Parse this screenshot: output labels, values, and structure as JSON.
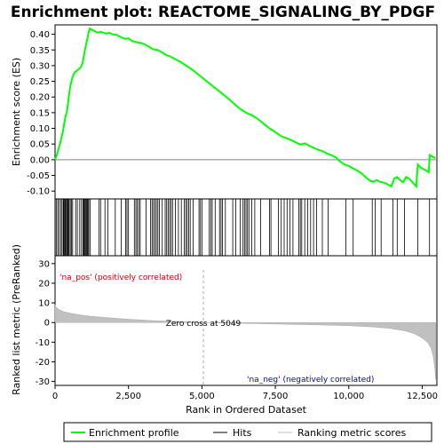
{
  "chart_data": {
    "type": "line",
    "title": "Enrichment plot: REACTOME_SIGNALING_BY_PDGF",
    "x_label": "Rank in Ordered Dataset",
    "x_range": [
      0,
      13000
    ],
    "x_ticks": [
      0,
      2500,
      5000,
      7500,
      10000,
      12500
    ],
    "x_tick_labels": [
      "0",
      "2,500",
      "5,000",
      "7,500",
      "10,000",
      "12,500"
    ],
    "es_panel": {
      "ylabel": "Enrichment score (ES)",
      "ylim": [
        -0.125,
        0.43
      ],
      "y_ticks": [
        -0.1,
        -0.05,
        0.0,
        0.05,
        0.1,
        0.15,
        0.2,
        0.25,
        0.3,
        0.35,
        0.4
      ],
      "y_tick_labels": [
        "-0.10",
        "-0.05",
        "0.00",
        "0.05",
        "0.10",
        "0.15",
        "0.20",
        "0.25",
        "0.30",
        "0.35",
        "0.40"
      ],
      "series_name": "Enrichment profile",
      "color": "#00ff00",
      "points": [
        [
          0,
          0.0
        ],
        [
          60,
          0.015
        ],
        [
          120,
          0.035
        ],
        [
          180,
          0.055
        ],
        [
          230,
          0.075
        ],
        [
          270,
          0.09
        ],
        [
          310,
          0.115
        ],
        [
          360,
          0.14
        ],
        [
          400,
          0.15
        ],
        [
          440,
          0.18
        ],
        [
          480,
          0.21
        ],
        [
          520,
          0.235
        ],
        [
          570,
          0.255
        ],
        [
          620,
          0.27
        ],
        [
          680,
          0.28
        ],
        [
          760,
          0.285
        ],
        [
          820,
          0.29
        ],
        [
          880,
          0.295
        ],
        [
          940,
          0.31
        ],
        [
          980,
          0.33
        ],
        [
          1020,
          0.35
        ],
        [
          1060,
          0.37
        ],
        [
          1100,
          0.385
        ],
        [
          1140,
          0.405
        ],
        [
          1180,
          0.418
        ],
        [
          1250,
          0.415
        ],
        [
          1350,
          0.41
        ],
        [
          1450,
          0.405
        ],
        [
          1550,
          0.408
        ],
        [
          1650,
          0.405
        ],
        [
          1750,
          0.402
        ],
        [
          1850,
          0.405
        ],
        [
          1950,
          0.4
        ],
        [
          2100,
          0.398
        ],
        [
          2250,
          0.39
        ],
        [
          2400,
          0.385
        ],
        [
          2500,
          0.387
        ],
        [
          2600,
          0.38
        ],
        [
          2750,
          0.375
        ],
        [
          2900,
          0.373
        ],
        [
          3050,
          0.368
        ],
        [
          3200,
          0.36
        ],
        [
          3350,
          0.352
        ],
        [
          3500,
          0.35
        ],
        [
          3650,
          0.342
        ],
        [
          3800,
          0.333
        ],
        [
          3900,
          0.33
        ],
        [
          4000,
          0.325
        ],
        [
          4150,
          0.318
        ],
        [
          4300,
          0.31
        ],
        [
          4500,
          0.298
        ],
        [
          4700,
          0.285
        ],
        [
          4900,
          0.27
        ],
        [
          5100,
          0.255
        ],
        [
          5300,
          0.24
        ],
        [
          5500,
          0.225
        ],
        [
          5700,
          0.21
        ],
        [
          5900,
          0.195
        ],
        [
          6100,
          0.178
        ],
        [
          6300,
          0.162
        ],
        [
          6500,
          0.15
        ],
        [
          6700,
          0.142
        ],
        [
          6900,
          0.13
        ],
        [
          7100,
          0.115
        ],
        [
          7300,
          0.1
        ],
        [
          7500,
          0.088
        ],
        [
          7700,
          0.075
        ],
        [
          7900,
          0.068
        ],
        [
          8100,
          0.06
        ],
        [
          8200,
          0.055
        ],
        [
          8350,
          0.048
        ],
        [
          8500,
          0.052
        ],
        [
          8650,
          0.045
        ],
        [
          8800,
          0.038
        ],
        [
          8950,
          0.032
        ],
        [
          9100,
          0.028
        ],
        [
          9250,
          0.02
        ],
        [
          9400,
          0.015
        ],
        [
          9550,
          0.008
        ],
        [
          9700,
          -0.005
        ],
        [
          9850,
          -0.015
        ],
        [
          10000,
          -0.02
        ],
        [
          10150,
          -0.028
        ],
        [
          10300,
          -0.035
        ],
        [
          10450,
          -0.045
        ],
        [
          10600,
          -0.058
        ],
        [
          10750,
          -0.068
        ],
        [
          10850,
          -0.07
        ],
        [
          10950,
          -0.065
        ],
        [
          11050,
          -0.07
        ],
        [
          11150,
          -0.072
        ],
        [
          11250,
          -0.075
        ],
        [
          11350,
          -0.08
        ],
        [
          11450,
          -0.085
        ],
        [
          11550,
          -0.06
        ],
        [
          11650,
          -0.055
        ],
        [
          11750,
          -0.065
        ],
        [
          11850,
          -0.072
        ],
        [
          11950,
          -0.055
        ],
        [
          12050,
          -0.06
        ],
        [
          12150,
          -0.07
        ],
        [
          12250,
          -0.08
        ],
        [
          12300,
          -0.085
        ],
        [
          12350,
          -0.015
        ],
        [
          12450,
          -0.025
        ],
        [
          12550,
          -0.03
        ],
        [
          12650,
          -0.035
        ],
        [
          12720,
          -0.04
        ],
        [
          12760,
          0.015
        ],
        [
          12850,
          0.01
        ],
        [
          12950,
          0.005
        ]
      ]
    },
    "hits_panel": {
      "series_name": "Hits",
      "positions": [
        40,
        90,
        140,
        200,
        240,
        280,
        300,
        330,
        350,
        370,
        400,
        430,
        450,
        480,
        520,
        560,
        600,
        700,
        760,
        840,
        900,
        950,
        980,
        1000,
        1030,
        1060,
        1090,
        1120,
        1150,
        1200,
        1500,
        1550,
        1700,
        1800,
        2050,
        2250,
        2400,
        2450,
        2500,
        2700,
        2750,
        2800,
        2850,
        2900,
        3100,
        3250,
        3300,
        3350,
        3400,
        3450,
        3500,
        3550,
        3650,
        3750,
        3800,
        3850,
        3900,
        3950,
        4000,
        4100,
        4200,
        4300,
        4400,
        4450,
        4500,
        4550,
        4600,
        4700,
        4900,
        4950,
        5000,
        5250,
        5300,
        5350,
        5450,
        5600,
        5650,
        5700,
        5800,
        6050,
        6150,
        6300,
        6400,
        6450,
        6500,
        6550,
        6600,
        6700,
        6800,
        7000,
        7300,
        7350,
        7600,
        7700,
        7800,
        7900,
        8000,
        8100,
        8300,
        8350,
        8400,
        8500,
        8600,
        8700,
        8800,
        8900,
        9100,
        9300,
        9900,
        10150,
        10800,
        10900,
        11100,
        11500,
        11650,
        11900,
        12350,
        12750
      ]
    },
    "metric_panel": {
      "ylabel": "Ranked list metric (PreRanked)",
      "ylim": [
        -32,
        34
      ],
      "y_ticks": [
        -30,
        -20,
        -10,
        0,
        10,
        20,
        30
      ],
      "y_tick_labels": [
        "-30",
        "-20",
        "-10",
        "0",
        "10",
        "20",
        "30"
      ],
      "series_name": "Ranking metric scores",
      "profile": [
        [
          0,
          9.0
        ],
        [
          50,
          7.5
        ],
        [
          150,
          6.5
        ],
        [
          300,
          5.5
        ],
        [
          500,
          4.8
        ],
        [
          800,
          4.0
        ],
        [
          1200,
          3.2
        ],
        [
          1800,
          2.5
        ],
        [
          2500,
          1.7
        ],
        [
          3300,
          1.0
        ],
        [
          4200,
          0.5
        ],
        [
          5049,
          0.0
        ],
        [
          6000,
          -0.3
        ],
        [
          7000,
          -0.6
        ],
        [
          8000,
          -0.9
        ],
        [
          9000,
          -1.2
        ],
        [
          10000,
          -1.6
        ],
        [
          10800,
          -2.2
        ],
        [
          11400,
          -3.0
        ],
        [
          11900,
          -4.2
        ],
        [
          12200,
          -5.5
        ],
        [
          12400,
          -7.0
        ],
        [
          12550,
          -8.5
        ],
        [
          12700,
          -10.5
        ],
        [
          12800,
          -13.0
        ],
        [
          12870,
          -17.0
        ],
        [
          12920,
          -22.0
        ],
        [
          12960,
          -29.0
        ]
      ],
      "pos_label": "'na_pos' (positively correlated)",
      "neg_label": "'na_neg' (negatively correlated)",
      "zero_cross_label": "Zero cross at 5049",
      "zero_cross": 5049
    },
    "legend": {
      "placement": "bottom",
      "items": [
        {
          "label": "Enrichment profile",
          "color": "#00ff00"
        },
        {
          "label": "Hits",
          "color": "#000000"
        },
        {
          "label": "Ranking metric scores",
          "color": "#c0c0c0"
        }
      ]
    }
  }
}
